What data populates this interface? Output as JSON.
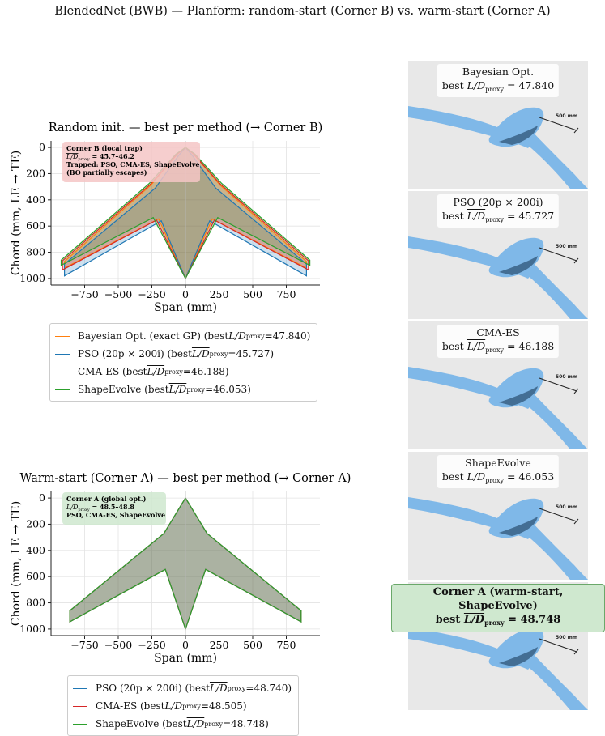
{
  "suptitle": "BlendedNet (BWB) — Planform: random-start (Corner B) vs. warm-start (Corner A)",
  "chart_data": [
    {
      "type": "line",
      "title": "Random init. — best per method  (→ Corner B)",
      "xlabel": "Span (mm)",
      "ylabel": "Chord (mm, LE → TE)",
      "xlim": [
        -1000,
        1000
      ],
      "ylim": [
        1050,
        -50
      ],
      "y_inverted": true,
      "xticks": [
        -750,
        -500,
        -250,
        0,
        250,
        500,
        750
      ],
      "xtick_labels": [
        "−750",
        "−500",
        "−250",
        "0",
        "250",
        "500",
        "750"
      ],
      "yticks": [
        0,
        200,
        400,
        600,
        800,
        1000
      ],
      "ytick_labels": [
        "0",
        "200",
        "400",
        "600",
        "800",
        "1000"
      ],
      "grid": true,
      "annotation": {
        "line1": "Corner B  (local trap)",
        "line2": "= 45.7–46.2",
        "line3": "Trapped: PSO, CMA-ES, ShapeEvolve",
        "line4": "(BO partially escapes)",
        "color": "#f4c6c6"
      },
      "series": [
        {
          "name": "Bayesian Opt. (exact GP)",
          "best_ld_proxy": "47.840",
          "color": "#ff7f0e",
          "x": [
            0,
            60,
            255,
            900,
            900,
            200,
            0,
            -200,
            -900,
            -900,
            -255,
            -60,
            0
          ],
          "y": [
            0,
            50,
            285,
            870,
            920,
            545,
            1000,
            545,
            920,
            870,
            285,
            50,
            0
          ]
        },
        {
          "name": "PSO (20p × 200i)",
          "best_ld_proxy": "45.727",
          "color": "#1f77b4",
          "x": [
            0,
            50,
            225,
            900,
            900,
            180,
            0,
            -180,
            -900,
            -900,
            -225,
            -50,
            0
          ],
          "y": [
            0,
            60,
            310,
            890,
            980,
            560,
            1000,
            560,
            980,
            890,
            310,
            60,
            0
          ]
        },
        {
          "name": "CMA-ES",
          "best_ld_proxy": "46.188",
          "color": "#d62728",
          "x": [
            0,
            60,
            260,
            915,
            915,
            215,
            0,
            -215,
            -915,
            -915,
            -260,
            -60,
            0
          ],
          "y": [
            0,
            50,
            280,
            865,
            935,
            555,
            1000,
            555,
            935,
            865,
            280,
            50,
            0
          ]
        },
        {
          "name": "ShapeEvolve",
          "best_ld_proxy": "46.053",
          "color": "#2ca02c",
          "x": [
            0,
            70,
            270,
            925,
            925,
            240,
            0,
            -240,
            -925,
            -925,
            -270,
            -70,
            0
          ],
          "y": [
            0,
            50,
            275,
            860,
            900,
            535,
            1000,
            535,
            900,
            860,
            275,
            50,
            0
          ]
        }
      ]
    },
    {
      "type": "line",
      "title": "Warm-start (Corner A) — best per method  (→ Corner A)",
      "xlabel": "Span (mm)",
      "ylabel": "Chord (mm, LE → TE)",
      "xlim": [
        -1000,
        1000
      ],
      "ylim": [
        1050,
        -50
      ],
      "y_inverted": true,
      "xticks": [
        -750,
        -500,
        -250,
        0,
        250,
        500,
        750
      ],
      "xtick_labels": [
        "−750",
        "−500",
        "−250",
        "0",
        "250",
        "500",
        "750"
      ],
      "yticks": [
        0,
        200,
        400,
        600,
        800,
        1000
      ],
      "ytick_labels": [
        "0",
        "200",
        "400",
        "600",
        "800",
        "1000"
      ],
      "grid": true,
      "annotation": {
        "line1": "Corner A  (global opt.)",
        "line2": "= 48.5–48.8",
        "line3": "PSO, CMA-ES, ShapeEvolve",
        "color": "#cfe8cf"
      },
      "series": [
        {
          "name": "PSO (20p × 200i)",
          "best_ld_proxy": "48.740",
          "color": "#1f77b4",
          "x": [
            0,
            160,
            860,
            860,
            150,
            0,
            -150,
            -860,
            -860,
            -160,
            0
          ],
          "y": [
            0,
            270,
            860,
            945,
            545,
            1000,
            545,
            945,
            860,
            270,
            0
          ]
        },
        {
          "name": "CMA-ES",
          "best_ld_proxy": "48.505",
          "color": "#d62728",
          "x": [
            0,
            160,
            860,
            860,
            150,
            0,
            -150,
            -860,
            -860,
            -160,
            0
          ],
          "y": [
            0,
            270,
            860,
            945,
            545,
            1000,
            545,
            945,
            860,
            270,
            0
          ]
        },
        {
          "name": "ShapeEvolve",
          "best_ld_proxy": "48.748",
          "color": "#2ca02c",
          "x": [
            0,
            160,
            860,
            860,
            150,
            0,
            -150,
            -860,
            -860,
            -160,
            0
          ],
          "y": [
            0,
            270,
            860,
            945,
            545,
            1000,
            545,
            945,
            860,
            270,
            0
          ]
        }
      ]
    }
  ],
  "legend1": {
    "items": [
      {
        "label": "Bayesian Opt. (exact GP)  (best ",
        "value": "=47.840)",
        "color": "#ff7f0e"
      },
      {
        "label": "PSO (20p × 200i)  (best ",
        "value": "=45.727)",
        "color": "#1f77b4"
      },
      {
        "label": "CMA-ES  (best ",
        "value": "=46.188)",
        "color": "#d62728"
      },
      {
        "label": "ShapeEvolve  (best ",
        "value": "=46.053)",
        "color": "#2ca02c"
      }
    ]
  },
  "legend2": {
    "items": [
      {
        "label": "PSO (20p × 200i)  (best ",
        "value": "=48.740)",
        "color": "#1f77b4"
      },
      {
        "label": "CMA-ES  (best ",
        "value": "=48.505)",
        "color": "#d62728"
      },
      {
        "label": "ShapeEvolve  (best ",
        "value": "=48.748)",
        "color": "#2ca02c"
      }
    ]
  },
  "ld_symbol": {
    "main": "L/D",
    "sub": "proxy"
  },
  "panels": [
    {
      "name": "Bayesian Opt.",
      "best_prefix": "best ",
      "best_value": " = 47.840",
      "scale": "500 mm"
    },
    {
      "name": "PSO (20p × 200i)",
      "best_prefix": "best ",
      "best_value": " = 45.727",
      "scale": "500 mm"
    },
    {
      "name": "CMA-ES",
      "best_prefix": "best ",
      "best_value": " = 46.188",
      "scale": "500 mm"
    },
    {
      "name": "ShapeEvolve",
      "best_prefix": "best ",
      "best_value": " = 46.053",
      "scale": "500 mm"
    },
    {
      "name": "",
      "best_prefix": "",
      "best_value": "",
      "scale": "500 mm"
    }
  ],
  "corner_badge": {
    "line1": "Corner A  (warm-start, ShapeEvolve)",
    "best_prefix": "best ",
    "best_value": " = 48.748"
  },
  "colors": {
    "wing_blue": "#7fb8e8",
    "panel_bg": "#e8e8e8",
    "badge_green": "#cfe8cf"
  }
}
